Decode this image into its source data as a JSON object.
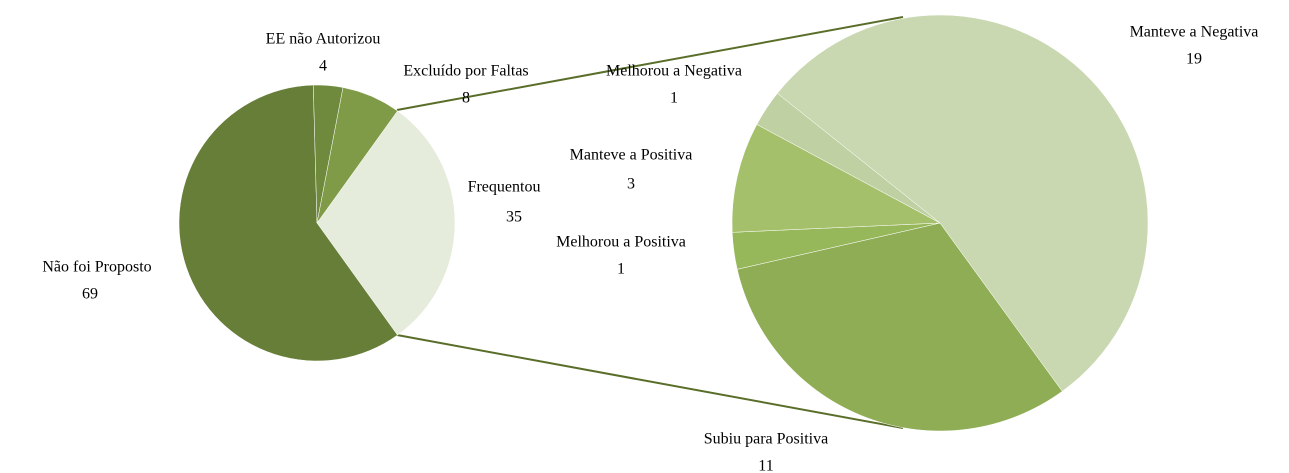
{
  "chart_data": [
    {
      "type": "pie",
      "categories": [
        "Frequentou",
        "Não foi Proposto",
        "EE não Autorizou",
        "Excluído por Faltas"
      ],
      "values": [
        35,
        69,
        4,
        8
      ],
      "colors": [
        "#e6ecdc",
        "#677e38",
        "#6f8a3c",
        "#7f9b47"
      ]
    },
    {
      "type": "pie",
      "categories": [
        "Subiu para Positiva",
        "Melhorou a Positiva",
        "Manteve a Positiva",
        "Melhorou a Negativa",
        "Manteve a Negativa"
      ],
      "values": [
        11,
        1,
        3,
        1,
        19
      ],
      "colors": [
        "#8fad55",
        "#97b85a",
        "#a4c06a",
        "#bfd0a3",
        "#c9d8b0"
      ]
    }
  ]
}
